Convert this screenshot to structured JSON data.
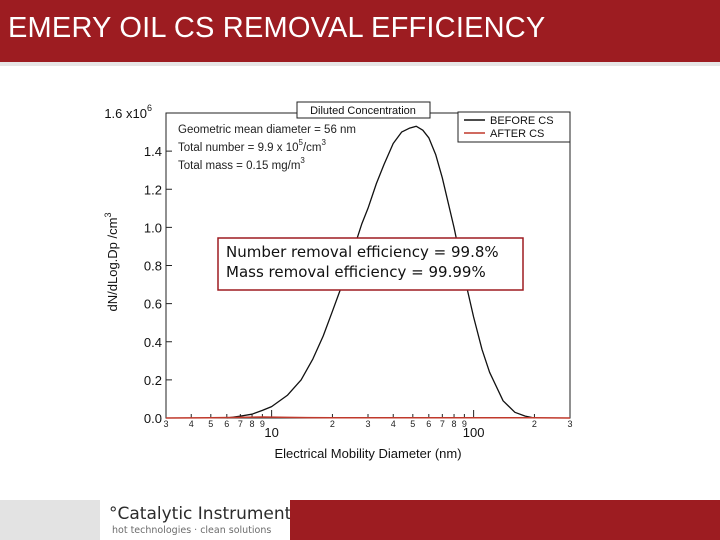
{
  "slide": {
    "title": "EMERY OIL CS REMOVAL EFFICIENCY"
  },
  "logo": {
    "name": "°Catalytic Instruments",
    "tagline": "hot technologies · clean solutions"
  },
  "colors": {
    "brand_red": "#9d1c21",
    "before": "#111111",
    "after": "#c0392b"
  },
  "chart_data": {
    "type": "line",
    "title": "Diluted Concentration",
    "xlabel": "Electrical Mobility Diameter (nm)",
    "ylabel": "dN/dLog.Dp /cm",
    "ylabel_sup": "3",
    "xscale": "log",
    "xlim": [
      3,
      300
    ],
    "ylim": [
      0,
      1600000
    ],
    "y_ticks": [
      {
        "value": 0,
        "label": "0.0"
      },
      {
        "value": 200000,
        "label": "0.2"
      },
      {
        "value": 400000,
        "label": "0.4"
      },
      {
        "value": 600000,
        "label": "0.6"
      },
      {
        "value": 800000,
        "label": "0.8"
      },
      {
        "value": 1000000,
        "label": "1.0"
      },
      {
        "value": 1200000,
        "label": "1.2"
      },
      {
        "value": 1400000,
        "label": "1.4"
      },
      {
        "value": 1600000,
        "label": "1.6 x10",
        "sup": "6"
      }
    ],
    "x_minor_labels": [
      {
        "value": 3,
        "label": "3"
      },
      {
        "value": 4,
        "label": "4"
      },
      {
        "value": 5,
        "label": "5"
      },
      {
        "value": 6,
        "label": "6"
      },
      {
        "value": 7,
        "label": "7"
      },
      {
        "value": 8,
        "label": "8"
      },
      {
        "value": 9,
        "label": "9"
      },
      {
        "value": 20,
        "label": "2"
      },
      {
        "value": 30,
        "label": "3"
      },
      {
        "value": 40,
        "label": "4"
      },
      {
        "value": 50,
        "label": "5"
      },
      {
        "value": 60,
        "label": "6"
      },
      {
        "value": 70,
        "label": "7"
      },
      {
        "value": 80,
        "label": "8"
      },
      {
        "value": 90,
        "label": "9"
      },
      {
        "value": 200,
        "label": "2"
      },
      {
        "value": 300,
        "label": "3"
      }
    ],
    "x_major_labels": [
      {
        "value": 10,
        "label": "10"
      },
      {
        "value": 100,
        "label": "100"
      }
    ],
    "series": [
      {
        "name": "BEFORE CS",
        "color": "#111111",
        "x": [
          6,
          7,
          8,
          9,
          10,
          12,
          14,
          16,
          18,
          20,
          22,
          25,
          28,
          30,
          33,
          36,
          40,
          44,
          48,
          52,
          56,
          60,
          65,
          70,
          80,
          90,
          100,
          110,
          120,
          140,
          160,
          180,
          200
        ],
        "y": [
          0,
          10000,
          20000,
          40000,
          60000,
          120000,
          200000,
          310000,
          430000,
          560000,
          680000,
          860000,
          1020000,
          1100000,
          1230000,
          1330000,
          1440000,
          1500000,
          1520000,
          1530000,
          1510000,
          1470000,
          1380000,
          1260000,
          1000000,
          740000,
          530000,
          360000,
          240000,
          90000,
          30000,
          10000,
          0
        ]
      },
      {
        "name": "AFTER CS",
        "color": "#c0392b",
        "x": [
          3,
          5,
          7,
          9,
          12,
          15,
          20,
          30,
          50,
          100,
          200,
          300
        ],
        "y": [
          0,
          1000,
          3000,
          5000,
          3000,
          2000,
          1000,
          1000,
          1000,
          1000,
          1000,
          0
        ]
      }
    ],
    "annotations": [
      "Geometric mean diameter = 56 nm",
      "Total number = 9.9 x 10",
      "Total mass = 0.15 mg/m"
    ],
    "annotation_sups": {
      "number_exp": "5",
      "cm3": "3",
      "m3": "3"
    },
    "annotation_units": {
      "per_cm": "/cm"
    },
    "legend_position": "top-right"
  },
  "callout": {
    "line1": "Number removal efficiency = 99.8%",
    "line2": "Mass removal efficiency = 99.99%"
  }
}
